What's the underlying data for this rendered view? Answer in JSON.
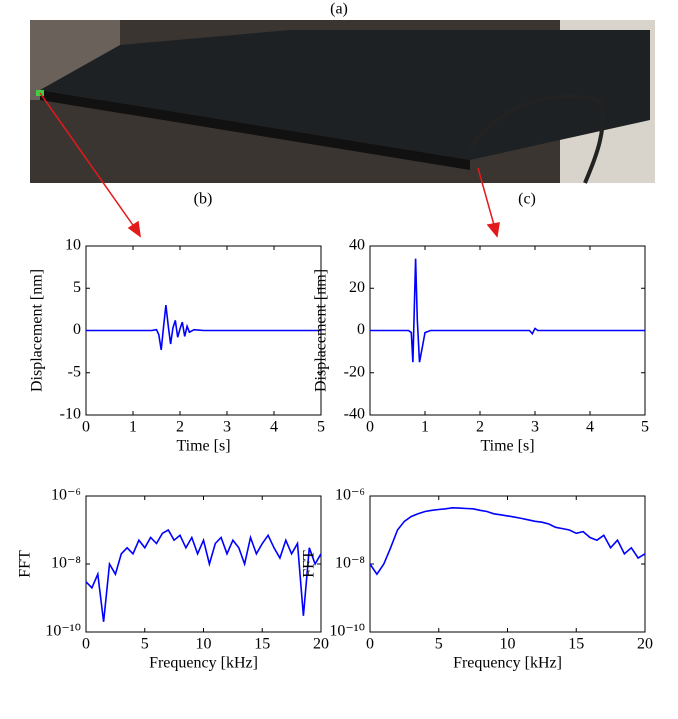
{
  "figure": {
    "panel_labels": [
      "(a)",
      "(b)",
      "(c)"
    ]
  },
  "chart_data": [
    {
      "type": "line",
      "xlabel": "Time [s]",
      "ylabel": "Displacement [nm]",
      "xlim": [
        0,
        5
      ],
      "ylim": [
        -10,
        10
      ],
      "xticks": [
        0,
        1,
        2,
        3,
        4,
        5
      ],
      "yticks": [
        -10,
        -5,
        0,
        5,
        10
      ],
      "series": [
        {
          "color": "#0000ff",
          "x": [
            0,
            0.5,
            1.0,
            1.4,
            1.5,
            1.55,
            1.6,
            1.65,
            1.7,
            1.75,
            1.8,
            1.85,
            1.9,
            1.95,
            2.0,
            2.05,
            2.1,
            2.15,
            2.2,
            2.3,
            2.5,
            3,
            3.5,
            4,
            4.5,
            5
          ],
          "values": [
            0,
            0,
            0,
            0,
            0.1,
            -0.5,
            -2.3,
            0.5,
            3,
            0.5,
            -1.6,
            0.3,
            1.2,
            -0.8,
            0.2,
            1.0,
            -0.7,
            0.5,
            -0.2,
            0.1,
            0,
            0,
            0,
            0,
            0,
            0
          ]
        }
      ]
    },
    {
      "type": "line",
      "xlabel": "Time [s]",
      "ylabel": "Displacement [nm]",
      "xlim": [
        0,
        5
      ],
      "ylim": [
        -40,
        40
      ],
      "xticks": [
        0,
        1,
        2,
        3,
        4,
        5
      ],
      "yticks": [
        -40,
        -20,
        0,
        20,
        40
      ],
      "series": [
        {
          "color": "#0000ff",
          "x": [
            0,
            0.5,
            0.7,
            0.75,
            0.78,
            0.8,
            0.83,
            0.86,
            0.9,
            0.95,
            1.0,
            1.1,
            1.5,
            2.8,
            2.9,
            2.95,
            3.0,
            3.05,
            3.2,
            4,
            5
          ],
          "values": [
            0,
            0,
            0,
            -1,
            -15,
            5,
            34,
            5,
            -15,
            -8,
            -1,
            0,
            0,
            0,
            0,
            -1.5,
            1,
            0,
            0,
            0,
            0
          ]
        }
      ]
    },
    {
      "type": "line",
      "xlabel": "Frequency [kHz]",
      "ylabel": "FFT",
      "log_y": true,
      "xlim": [
        0,
        20
      ],
      "ylim": [
        1e-10,
        1e-06
      ],
      "xticks": [
        0,
        5,
        10,
        15,
        20
      ],
      "yticks": [
        {
          "value": 1e-10,
          "label": "10⁻¹⁰"
        },
        {
          "value": 1e-08,
          "label": "10⁻⁸"
        },
        {
          "value": 1e-06,
          "label": "10⁻⁶"
        }
      ],
      "series": [
        {
          "color": "#0000ff",
          "x": [
            0,
            0.5,
            1,
            1.5,
            2,
            2.5,
            3,
            3.5,
            4,
            4.5,
            5,
            5.5,
            6,
            6.5,
            7,
            7.5,
            8,
            8.5,
            9,
            9.5,
            10,
            10.5,
            11,
            11.5,
            12,
            12.5,
            13,
            13.5,
            14,
            14.5,
            15,
            15.5,
            16,
            16.5,
            17,
            17.5,
            18,
            18.5,
            19,
            19.5,
            20
          ],
          "values": [
            3e-09,
            2e-09,
            5e-09,
            2e-10,
            1e-08,
            5e-09,
            2e-08,
            3e-08,
            2e-08,
            5e-08,
            3e-08,
            6e-08,
            4e-08,
            8e-08,
            1e-07,
            5e-08,
            7e-08,
            3e-08,
            6e-08,
            2e-08,
            5e-08,
            1e-08,
            4e-08,
            6e-08,
            2e-08,
            5e-08,
            3e-08,
            1e-08,
            6e-08,
            2e-08,
            4e-08,
            7e-08,
            3e-08,
            1.5e-08,
            5e-08,
            2e-08,
            4e-08,
            3e-10,
            3e-08,
            1e-08,
            2e-08
          ]
        }
      ]
    },
    {
      "type": "line",
      "xlabel": "Frequency [kHz]",
      "ylabel": "FFT",
      "log_y": true,
      "xlim": [
        0,
        20
      ],
      "ylim": [
        1e-10,
        1e-06
      ],
      "xticks": [
        0,
        5,
        10,
        15,
        20
      ],
      "yticks": [
        {
          "value": 1e-10,
          "label": "10⁻¹⁰"
        },
        {
          "value": 1e-08,
          "label": "10⁻⁸"
        },
        {
          "value": 1e-06,
          "label": "10⁻⁶"
        }
      ],
      "series": [
        {
          "color": "#0000ff",
          "x": [
            0,
            0.5,
            1,
            1.5,
            2,
            2.5,
            3,
            3.5,
            4,
            4.5,
            5,
            5.5,
            6,
            6.5,
            7,
            7.5,
            8,
            8.5,
            9,
            9.5,
            10,
            10.5,
            11,
            11.5,
            12,
            12.5,
            13,
            13.5,
            14,
            14.5,
            15,
            15.5,
            16,
            16.5,
            17,
            17.5,
            18,
            18.5,
            19,
            19.5,
            20
          ],
          "values": [
            1e-08,
            5e-09,
            1e-08,
            3e-08,
            1e-07,
            1.8e-07,
            2.5e-07,
            3e-07,
            3.5e-07,
            3.8e-07,
            4e-07,
            4.2e-07,
            4.5e-07,
            4.4e-07,
            4.3e-07,
            4.2e-07,
            3.8e-07,
            3.5e-07,
            3e-07,
            2.8e-07,
            2.6e-07,
            2.4e-07,
            2.2e-07,
            2e-07,
            1.8e-07,
            1.7e-07,
            1.5e-07,
            1.2e-07,
            1.1e-07,
            1e-07,
            8e-08,
            9e-08,
            6e-08,
            5e-08,
            7e-08,
            3e-08,
            5e-08,
            2e-08,
            3e-08,
            1.5e-08,
            2e-08
          ]
        }
      ]
    }
  ]
}
